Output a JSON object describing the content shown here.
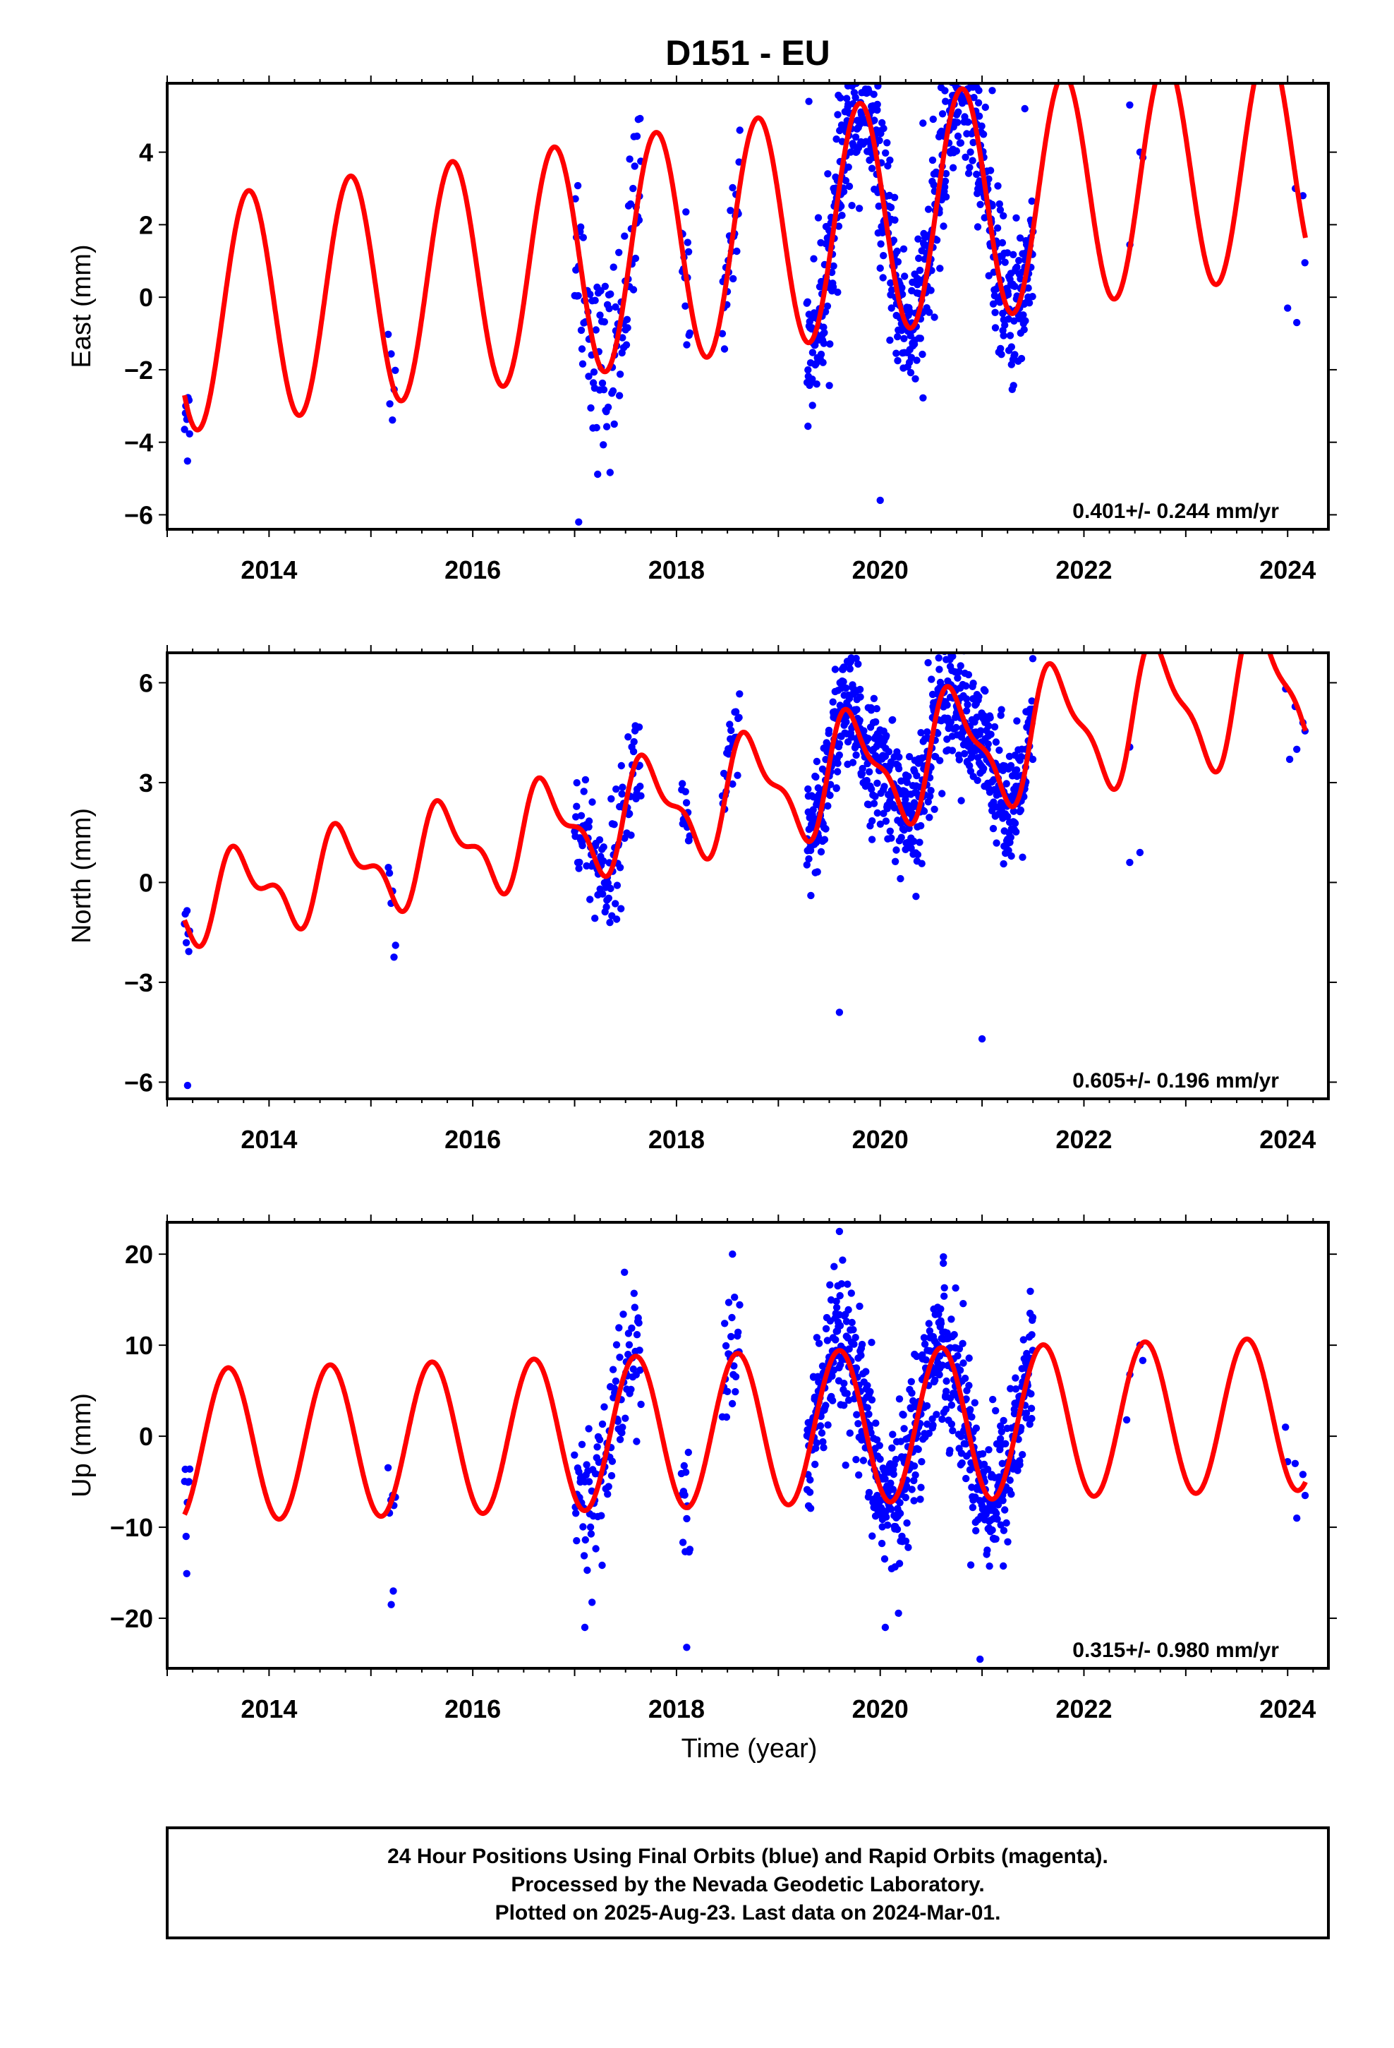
{
  "title": "D151 - EU",
  "xlabel": "Time (year)",
  "footer": {
    "lines": [
      "24 Hour Positions Using Final Orbits (blue) and Rapid Orbits (magenta).",
      "Processed by the Nevada Geodetic Laboratory.",
      "Plotted on 2025-Aug-23. Last data on 2024-Mar-01."
    ]
  },
  "colors": {
    "observations": "#0000ff",
    "model": "#ff0000",
    "frame": "#000000"
  },
  "chart_data": [
    {
      "type": "scatter",
      "component": "east",
      "ylabel": "East (mm)",
      "xlim": [
        2013.0,
        2024.4
      ],
      "ylim": [
        -6.4,
        5.9
      ],
      "yticks": [
        -6,
        -4,
        -2,
        0,
        2,
        4
      ],
      "ytick_labels": [
        "−6",
        "−4",
        "−2",
        "0",
        "2",
        "4"
      ],
      "xticks": [
        2014,
        2016,
        2018,
        2020,
        2022,
        2024
      ],
      "xtick_labels": [
        "2014",
        "2016",
        "2018",
        "2020",
        "2022",
        "2024"
      ],
      "rate_label": "0.401+/- 0.244 mm/yr",
      "model": {
        "name": "model fit",
        "rate_mm_per_yr": 0.401,
        "offset": -0.5,
        "amp_start": 3.2,
        "amp_growth": 0.0,
        "phase": 0.55,
        "semi_amp": 0.0
      },
      "segments": [
        {
          "start": 2013.17,
          "end": 2013.22,
          "count": 8,
          "spread": 0.9
        },
        {
          "start": 2015.17,
          "end": 2015.24,
          "count": 6,
          "spread": 0.7
        },
        {
          "start": 2017.0,
          "end": 2017.65,
          "count": 110,
          "spread": 1.3
        },
        {
          "start": 2018.05,
          "end": 2018.13,
          "count": 14,
          "spread": 0.8
        },
        {
          "start": 2018.45,
          "end": 2018.62,
          "count": 25,
          "spread": 0.8
        },
        {
          "start": 2019.28,
          "end": 2021.5,
          "count": 700,
          "spread": 1.0
        },
        {
          "start": 2022.45,
          "end": 2022.58,
          "count": 2,
          "spread": 0.4
        },
        {
          "start": 2023.98,
          "end": 2024.17,
          "count": 3,
          "spread": 0.6
        }
      ],
      "outliers": [
        {
          "x": 2017.04,
          "y": -6.2
        },
        {
          "x": 2019.3,
          "y": 5.4
        },
        {
          "x": 2020.0,
          "y": -5.6
        },
        {
          "x": 2020.42,
          "y": 4.8
        },
        {
          "x": 2021.1,
          "y": 5.7
        },
        {
          "x": 2021.42,
          "y": 5.2
        },
        {
          "x": 2022.45,
          "y": 5.3
        },
        {
          "x": 2022.55,
          "y": 4.0
        },
        {
          "x": 2024.15,
          "y": 2.8
        },
        {
          "x": 2024.09,
          "y": -0.7
        },
        {
          "x": 2024.0,
          "y": -0.3
        }
      ]
    },
    {
      "type": "scatter",
      "component": "north",
      "ylabel": "North (mm)",
      "xlim": [
        2013.0,
        2024.4
      ],
      "ylim": [
        -6.5,
        6.9
      ],
      "yticks": [
        -6,
        -3,
        0,
        3,
        6
      ],
      "ytick_labels": [
        "−6",
        "−3",
        "0",
        "3",
        "6"
      ],
      "xticks": [
        2014,
        2016,
        2018,
        2020,
        2022,
        2024
      ],
      "xtick_labels": [
        "2014",
        "2016",
        "2018",
        "2020",
        "2022",
        "2024"
      ],
      "rate_label": "0.605+/- 0.196 mm/yr",
      "model": {
        "name": "model fit",
        "rate_mm_per_yr": 0.605,
        "offset": -0.6,
        "amp_start": 1.0,
        "amp_growth": 0.09,
        "phase": 0.48,
        "semi_amp": 0.6
      },
      "segments": [
        {
          "start": 2013.17,
          "end": 2013.22,
          "count": 7,
          "spread": 0.5
        },
        {
          "start": 2015.17,
          "end": 2015.24,
          "count": 6,
          "spread": 0.6
        },
        {
          "start": 2017.0,
          "end": 2017.65,
          "count": 110,
          "spread": 0.9
        },
        {
          "start": 2018.05,
          "end": 2018.13,
          "count": 14,
          "spread": 0.6
        },
        {
          "start": 2018.45,
          "end": 2018.62,
          "count": 25,
          "spread": 0.8
        },
        {
          "start": 2019.28,
          "end": 2021.5,
          "count": 700,
          "spread": 0.9
        },
        {
          "start": 2022.45,
          "end": 2022.58,
          "count": 2,
          "spread": 0.3
        },
        {
          "start": 2023.98,
          "end": 2024.17,
          "count": 3,
          "spread": 0.5
        }
      ],
      "outliers": [
        {
          "x": 2013.2,
          "y": -6.1
        },
        {
          "x": 2020.47,
          "y": 6.6
        },
        {
          "x": 2020.4,
          "y": 4.5
        },
        {
          "x": 2019.52,
          "y": 4.1
        },
        {
          "x": 2019.6,
          "y": -3.9
        },
        {
          "x": 2021.0,
          "y": -4.7
        },
        {
          "x": 2021.43,
          "y": 4.0
        },
        {
          "x": 2024.15,
          "y": 4.8
        },
        {
          "x": 2024.09,
          "y": 4.0
        },
        {
          "x": 2024.02,
          "y": 3.7
        },
        {
          "x": 2022.45,
          "y": 0.6
        },
        {
          "x": 2022.55,
          "y": 0.9
        }
      ]
    },
    {
      "type": "scatter",
      "component": "up",
      "ylabel": "Up (mm)",
      "xlim": [
        2013.0,
        2024.4
      ],
      "ylim": [
        -25.5,
        23.5
      ],
      "yticks": [
        -20,
        -10,
        0,
        10,
        20
      ],
      "ytick_labels": [
        "−20",
        "−10",
        "0",
        "10",
        "20"
      ],
      "xticks": [
        2014,
        2016,
        2018,
        2020,
        2022,
        2024
      ],
      "xtick_labels": [
        "2014",
        "2016",
        "2018",
        "2020",
        "2022",
        "2024"
      ],
      "rate_label": "0.315+/- 0.980 mm/yr",
      "model": {
        "name": "model fit",
        "rate_mm_per_yr": 0.315,
        "offset": -1.0,
        "amp_start": 8.4,
        "amp_growth": 0.0,
        "phase": 0.35,
        "semi_amp": 0.0
      },
      "segments": [
        {
          "start": 2013.17,
          "end": 2013.22,
          "count": 8,
          "spread": 3.5
        },
        {
          "start": 2015.17,
          "end": 2015.24,
          "count": 6,
          "spread": 2.5
        },
        {
          "start": 2017.0,
          "end": 2017.65,
          "count": 110,
          "spread": 4.5
        },
        {
          "start": 2018.05,
          "end": 2018.13,
          "count": 14,
          "spread": 4.0
        },
        {
          "start": 2018.45,
          "end": 2018.62,
          "count": 25,
          "spread": 3.5
        },
        {
          "start": 2019.28,
          "end": 2021.5,
          "count": 700,
          "spread": 4.0
        },
        {
          "start": 2022.45,
          "end": 2022.58,
          "count": 2,
          "spread": 1.5
        },
        {
          "start": 2023.98,
          "end": 2024.17,
          "count": 3,
          "spread": 2.5
        }
      ],
      "outliers": [
        {
          "x": 2015.2,
          "y": -18.5
        },
        {
          "x": 2015.22,
          "y": -17.0
        },
        {
          "x": 2017.1,
          "y": -21.0
        },
        {
          "x": 2018.1,
          "y": -23.2
        },
        {
          "x": 2018.55,
          "y": 20.0
        },
        {
          "x": 2019.6,
          "y": 22.5
        },
        {
          "x": 2020.05,
          "y": -21.0
        },
        {
          "x": 2020.62,
          "y": 19.0
        },
        {
          "x": 2020.98,
          "y": -24.5
        },
        {
          "x": 2022.42,
          "y": 1.8
        },
        {
          "x": 2022.55,
          "y": 10.0
        },
        {
          "x": 2024.0,
          "y": -2.8
        },
        {
          "x": 2024.09,
          "y": -9.0
        },
        {
          "x": 2024.15,
          "y": -4.2
        }
      ]
    }
  ]
}
